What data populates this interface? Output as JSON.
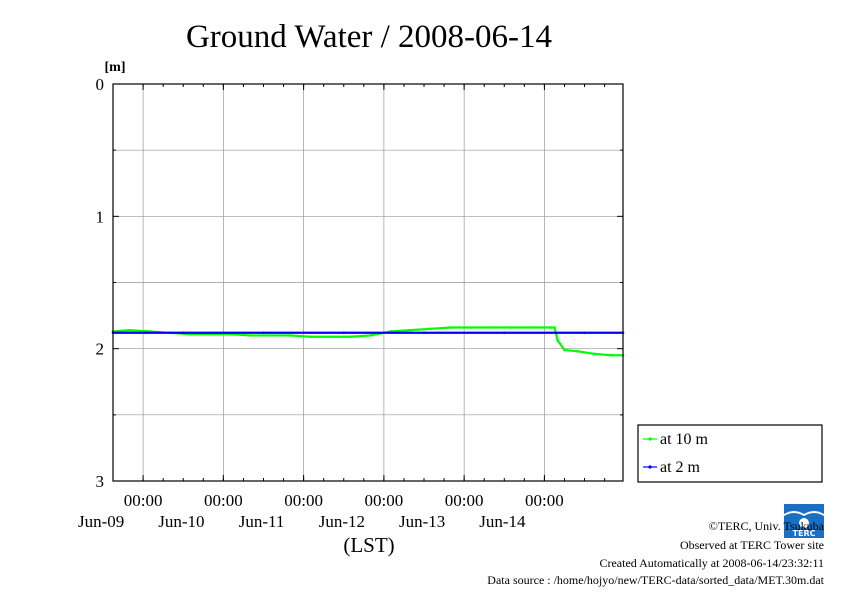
{
  "chart_data": {
    "type": "line",
    "title": "Ground Water / 2008-06-14",
    "unit": "[m]",
    "xlabel": "(LST)",
    "ylim": [
      0,
      3
    ],
    "y_inverted": true,
    "yticks": [
      "0",
      "1",
      "2",
      "3"
    ],
    "y_minor_gridlines": [
      0.5,
      1.5,
      2.5
    ],
    "x_range_days": [
      "2008-06-08T15:00",
      "2008-06-14T23:30"
    ],
    "x_major_ticks": [
      {
        "time": "2008-06-09T00:00",
        "label": "00:00",
        "date": "Jun-09"
      },
      {
        "time": "2008-06-10T00:00",
        "label": "00:00",
        "date": "Jun-10"
      },
      {
        "time": "2008-06-11T00:00",
        "label": "00:00",
        "date": "Jun-11"
      },
      {
        "time": "2008-06-12T00:00",
        "label": "00:00",
        "date": "Jun-12"
      },
      {
        "time": "2008-06-13T00:00",
        "label": "00:00",
        "date": "Jun-13"
      },
      {
        "time": "2008-06-14T00:00",
        "label": "00:00",
        "date": "Jun-14"
      }
    ],
    "grid": true,
    "legend_position": "bottom-right-outside",
    "series": [
      {
        "name": "at 10 m",
        "color": "#00ff00",
        "points": [
          [
            "2008-06-08T15:00",
            1.87
          ],
          [
            "2008-06-08T20:00",
            1.86
          ],
          [
            "2008-06-09T02:00",
            1.87
          ],
          [
            "2008-06-09T08:00",
            1.88
          ],
          [
            "2008-06-09T14:00",
            1.89
          ],
          [
            "2008-06-09T20:00",
            1.89
          ],
          [
            "2008-06-10T02:00",
            1.89
          ],
          [
            "2008-06-10T08:00",
            1.9
          ],
          [
            "2008-06-10T14:00",
            1.9
          ],
          [
            "2008-06-10T20:00",
            1.9
          ],
          [
            "2008-06-11T02:00",
            1.91
          ],
          [
            "2008-06-11T08:00",
            1.91
          ],
          [
            "2008-06-11T14:00",
            1.91
          ],
          [
            "2008-06-11T20:00",
            1.9
          ],
          [
            "2008-06-12T02:00",
            1.87
          ],
          [
            "2008-06-12T08:00",
            1.86
          ],
          [
            "2008-06-12T14:00",
            1.85
          ],
          [
            "2008-06-12T20:00",
            1.84
          ],
          [
            "2008-06-13T02:00",
            1.84
          ],
          [
            "2008-06-13T08:00",
            1.84
          ],
          [
            "2008-06-13T14:00",
            1.84
          ],
          [
            "2008-06-13T20:00",
            1.84
          ],
          [
            "2008-06-14T02:00",
            1.84
          ],
          [
            "2008-06-14T03:00",
            1.84
          ],
          [
            "2008-06-14T04:00",
            1.94
          ],
          [
            "2008-06-14T06:00",
            2.01
          ],
          [
            "2008-06-14T10:00",
            2.02
          ],
          [
            "2008-06-14T15:00",
            2.04
          ],
          [
            "2008-06-14T20:00",
            2.05
          ],
          [
            "2008-06-14T23:30",
            2.05
          ]
        ]
      },
      {
        "name": "at 2 m",
        "color": "#0000ff",
        "points": [
          [
            "2008-06-08T15:00",
            1.88
          ],
          [
            "2008-06-09T12:00",
            1.88
          ],
          [
            "2008-06-10T12:00",
            1.88
          ],
          [
            "2008-06-11T12:00",
            1.88
          ],
          [
            "2008-06-12T12:00",
            1.88
          ],
          [
            "2008-06-13T12:00",
            1.88
          ],
          [
            "2008-06-14T12:00",
            1.88
          ],
          [
            "2008-06-14T23:30",
            1.88
          ]
        ]
      }
    ]
  },
  "footer": {
    "copyright": "©TERC, Univ. Tsukuba",
    "observed": "Observed at TERC Tower site",
    "created": "Created Automatically at 2008-06-14/23:32:11",
    "source": "Data source : /home/hojyo/new/TERC-data/sorted_data/MET.30m.dat",
    "logo_text": "TERC",
    "logo_color": "#1a6fc4"
  }
}
